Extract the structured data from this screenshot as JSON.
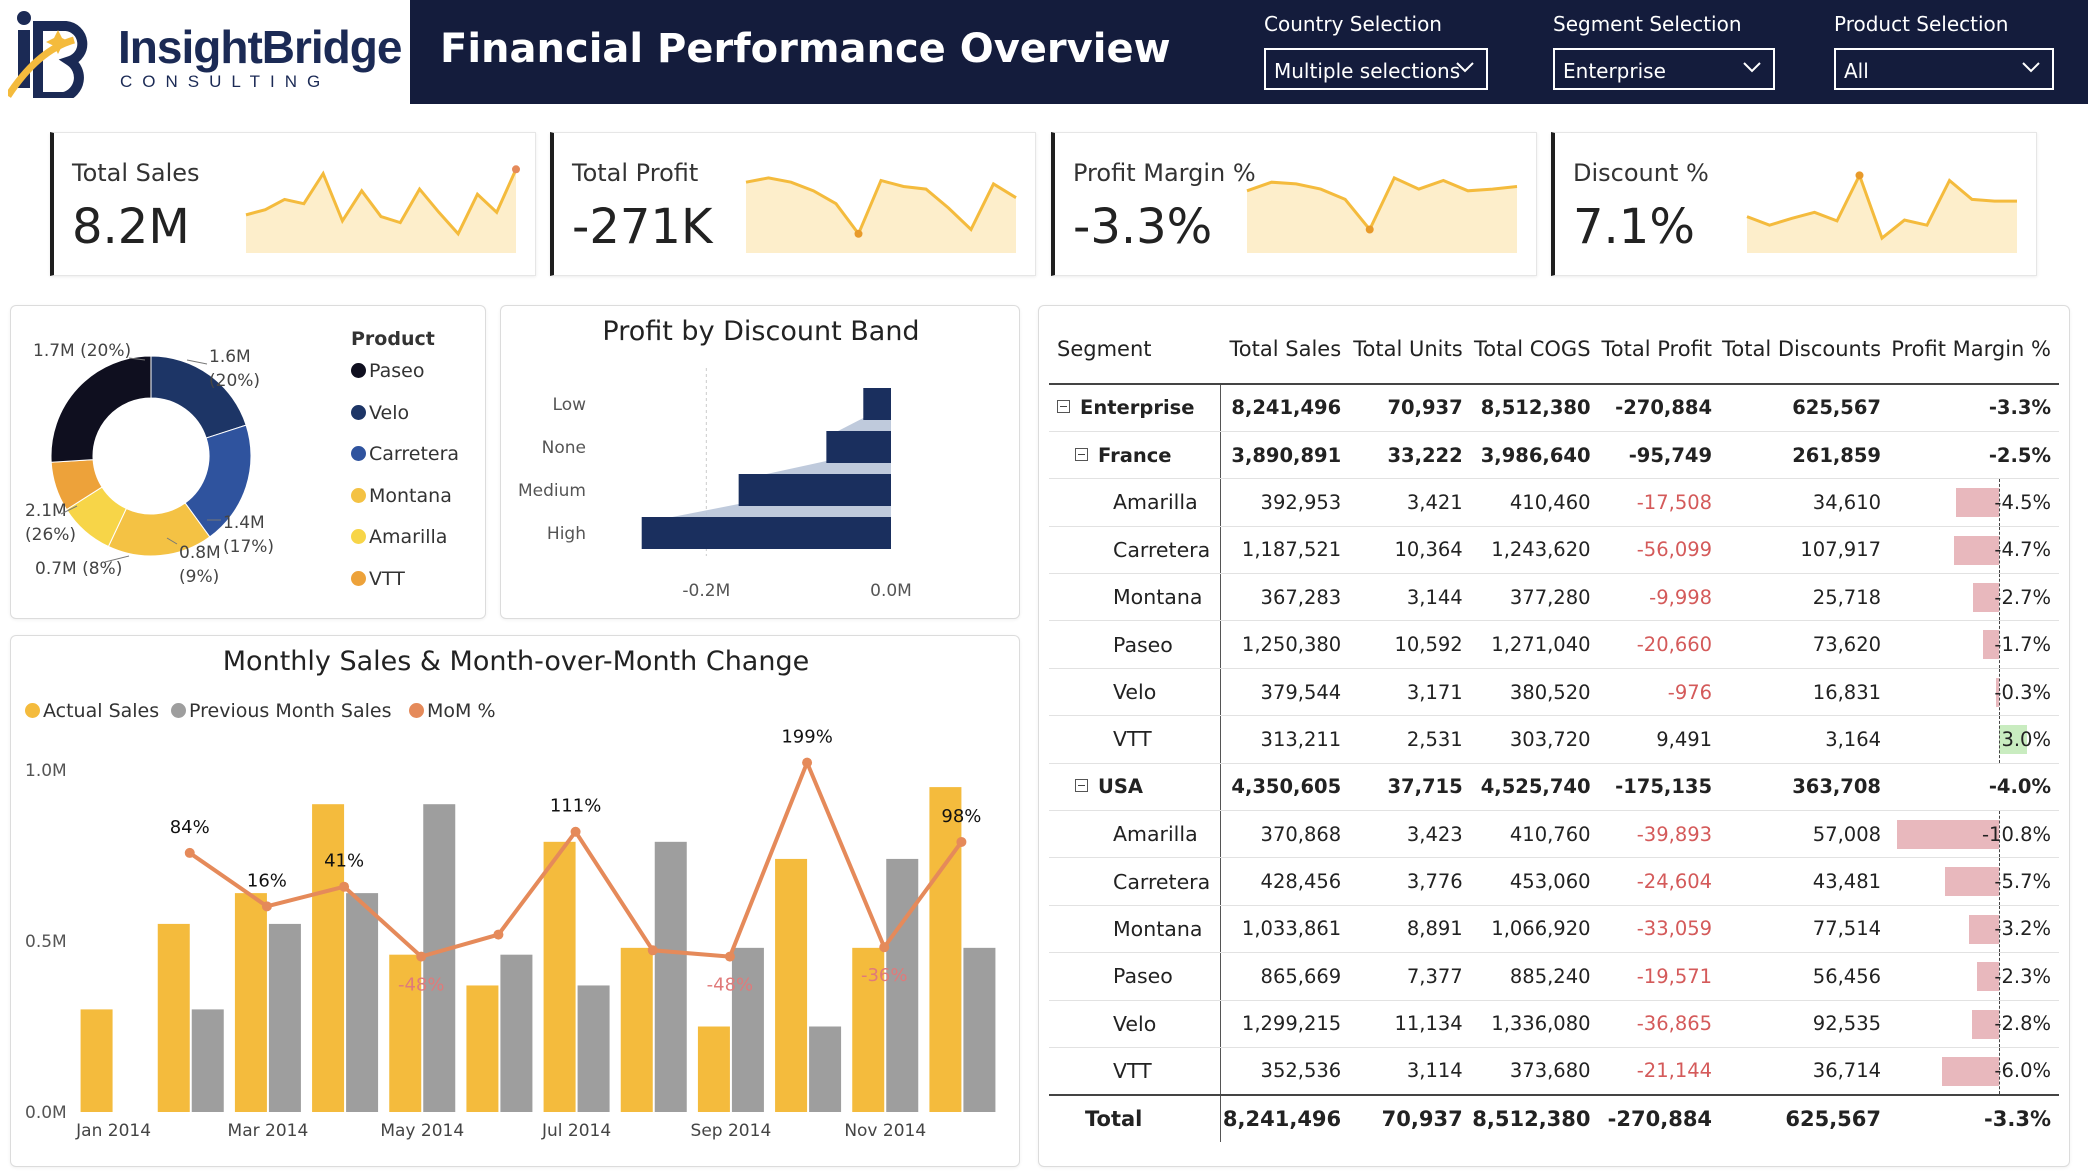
{
  "brand": {
    "name": "InsightBridge",
    "tagline": "CONSULTING"
  },
  "title": "Financial Performance Overview",
  "slicers": [
    {
      "label": "Country Selection",
      "value": "Multiple selections"
    },
    {
      "label": "Segment Selection",
      "value": "Enterprise"
    },
    {
      "label": "Product Selection",
      "value": "All"
    }
  ],
  "kpis": [
    {
      "label": "Total Sales",
      "value": "8.2M",
      "spark": [
        0.42,
        0.48,
        0.6,
        0.55,
        0.9,
        0.35,
        0.7,
        0.4,
        0.33,
        0.72,
        0.45,
        0.2,
        0.66,
        0.45,
        0.95
      ],
      "accent": "end"
    },
    {
      "label": "Total Profit",
      "value": "-271K",
      "spark": [
        0.8,
        0.85,
        0.8,
        0.7,
        0.55,
        0.2,
        0.82,
        0.75,
        0.72,
        0.5,
        0.25,
        0.78,
        0.62
      ],
      "accent": "min"
    },
    {
      "label": "Profit Margin %",
      "value": "-3.3%",
      "spark": [
        0.7,
        0.8,
        0.78,
        0.72,
        0.6,
        0.25,
        0.85,
        0.72,
        0.82,
        0.7,
        0.72,
        0.75
      ],
      "accent": "min"
    },
    {
      "label": "Discount %",
      "value": "7.1%",
      "spark": [
        0.4,
        0.3,
        0.38,
        0.45,
        0.35,
        0.88,
        0.15,
        0.36,
        0.3,
        0.82,
        0.6,
        0.58,
        0.58
      ],
      "accent": "max"
    }
  ],
  "donut": {
    "legend_title": "Product",
    "slices": [
      {
        "name": "Paseo",
        "value": 2.1,
        "share": 26,
        "label": "2.1M (26%)",
        "color": "#0f0f1f"
      },
      {
        "name": "Velo",
        "value": 1.7,
        "share": 20,
        "label": "1.7M (20%)",
        "color": "#1d3566"
      },
      {
        "name": "Carretera",
        "value": 1.6,
        "share": 20,
        "label": "1.6M (20%)",
        "color": "#2f539e"
      },
      {
        "name": "Montana",
        "value": 1.4,
        "share": 17,
        "label": "1.4M (17%)",
        "color": "#f4c244"
      },
      {
        "name": "Amarilla",
        "value": 0.8,
        "share": 9,
        "label": "0.8M (9%)",
        "color": "#f7d548"
      },
      {
        "name": "VTT",
        "value": 0.7,
        "share": 8,
        "label": "0.7M (8%)",
        "color": "#eda23a"
      }
    ]
  },
  "chart_data": [
    {
      "type": "bar",
      "title": "Profit by Discount Band",
      "orientation": "horizontal",
      "categories": [
        "Low",
        "None",
        "Medium",
        "High"
      ],
      "values": [
        -0.03,
        -0.07,
        -0.165,
        -0.27
      ],
      "xticks": [
        "-0.2M",
        "0.0M"
      ],
      "xlim": [
        -0.3,
        0.0
      ],
      "color": "#1a2f5e"
    },
    {
      "type": "bar",
      "title": "Monthly Sales & Month-over-Month Change",
      "legend": [
        "Actual Sales",
        "Previous Month Sales",
        "MoM %"
      ],
      "legend_position": "top-left",
      "x": [
        "Jan 2014",
        "Feb 2014",
        "Mar 2014",
        "Apr 2014",
        "May 2014",
        "Jun 2014",
        "Jul 2014",
        "Aug 2014",
        "Sep 2014",
        "Oct 2014",
        "Nov 2014",
        "Dec 2014"
      ],
      "xticks": [
        "Jan 2014",
        "Mar 2014",
        "May 2014",
        "Jul 2014",
        "Sep 2014",
        "Nov 2014"
      ],
      "yticks": [
        "0.0M",
        "0.5M",
        "1.0M"
      ],
      "ylim": [
        0,
        1.0
      ],
      "series": [
        {
          "name": "Actual Sales",
          "color": "#f4bb3d",
          "values": [
            0.3,
            0.55,
            0.64,
            0.9,
            0.46,
            0.37,
            0.79,
            0.48,
            0.25,
            0.74,
            0.48,
            0.95
          ]
        },
        {
          "name": "Previous Month Sales",
          "color": "#9e9e9e",
          "values": [
            null,
            0.3,
            0.55,
            0.64,
            0.9,
            0.46,
            0.37,
            0.79,
            0.48,
            0.25,
            0.74,
            0.48
          ]
        },
        {
          "name": "MoM %",
          "color": "#e58a5a",
          "values": [
            null,
            84,
            16,
            41,
            -48,
            -20,
            111,
            -40,
            -48,
            199,
            -36,
            98
          ],
          "labels": [
            "",
            "84%",
            "16%",
            "41%",
            "-48%",
            "",
            "111%",
            "",
            "-48%",
            "199%",
            "-36%",
            "98%"
          ]
        }
      ]
    }
  ],
  "matrix": {
    "columns": [
      "Segment",
      "Total Sales",
      "Total Units",
      "Total COGS",
      "Total Profit",
      "Total Discounts",
      "Profit Margin %"
    ],
    "pm_range": [
      -10.8,
      3.0
    ],
    "rows": [
      {
        "level": 0,
        "name": "Enterprise",
        "cells": [
          "8,241,496",
          "70,937",
          "8,512,380",
          "-270,884",
          "625,567",
          "-3.3%"
        ],
        "pm": -3.3
      },
      {
        "level": 1,
        "name": "France",
        "cells": [
          "3,890,891",
          "33,222",
          "3,986,640",
          "-95,749",
          "261,859",
          "-2.5%"
        ],
        "pm": -2.5
      },
      {
        "level": 2,
        "name": "Amarilla",
        "cells": [
          "392,953",
          "3,421",
          "410,460",
          "-17,508",
          "34,610",
          "-4.5%"
        ],
        "pm": -4.5
      },
      {
        "level": 2,
        "name": "Carretera",
        "cells": [
          "1,187,521",
          "10,364",
          "1,243,620",
          "-56,099",
          "107,917",
          "-4.7%"
        ],
        "pm": -4.7
      },
      {
        "level": 2,
        "name": "Montana",
        "cells": [
          "367,283",
          "3,144",
          "377,280",
          "-9,998",
          "25,718",
          "-2.7%"
        ],
        "pm": -2.7
      },
      {
        "level": 2,
        "name": "Paseo",
        "cells": [
          "1,250,380",
          "10,592",
          "1,271,040",
          "-20,660",
          "73,620",
          "-1.7%"
        ],
        "pm": -1.7
      },
      {
        "level": 2,
        "name": "Velo",
        "cells": [
          "379,544",
          "3,171",
          "380,520",
          "-976",
          "16,831",
          "-0.3%"
        ],
        "pm": -0.3
      },
      {
        "level": 2,
        "name": "VTT",
        "cells": [
          "313,211",
          "2,531",
          "303,720",
          "9,491",
          "3,164",
          "3.0%"
        ],
        "pm": 3.0
      },
      {
        "level": 1,
        "name": "USA",
        "cells": [
          "4,350,605",
          "37,715",
          "4,525,740",
          "-175,135",
          "363,708",
          "-4.0%"
        ],
        "pm": -4.0
      },
      {
        "level": 2,
        "name": "Amarilla",
        "cells": [
          "370,868",
          "3,423",
          "410,760",
          "-39,893",
          "57,008",
          "-10.8%"
        ],
        "pm": -10.8
      },
      {
        "level": 2,
        "name": "Carretera",
        "cells": [
          "428,456",
          "3,776",
          "453,060",
          "-24,604",
          "43,481",
          "-5.7%"
        ],
        "pm": -5.7
      },
      {
        "level": 2,
        "name": "Montana",
        "cells": [
          "1,033,861",
          "8,891",
          "1,066,920",
          "-33,059",
          "77,514",
          "-3.2%"
        ],
        "pm": -3.2
      },
      {
        "level": 2,
        "name": "Paseo",
        "cells": [
          "865,669",
          "7,377",
          "885,240",
          "-19,571",
          "56,456",
          "-2.3%"
        ],
        "pm": -2.3
      },
      {
        "level": 2,
        "name": "Velo",
        "cells": [
          "1,299,215",
          "11,134",
          "1,336,080",
          "-36,865",
          "92,535",
          "-2.8%"
        ],
        "pm": -2.8
      },
      {
        "level": 2,
        "name": "VTT",
        "cells": [
          "352,536",
          "3,114",
          "373,680",
          "-21,144",
          "36,714",
          "-6.0%"
        ],
        "pm": -6.0
      }
    ],
    "total": {
      "name": "Total",
      "cells": [
        "8,241,496",
        "70,937",
        "8,512,380",
        "-270,884",
        "625,567",
        "-3.3%"
      ]
    }
  },
  "colors": {
    "navy": "#141c3c",
    "gold": "#f4bb3d",
    "grey": "#9e9e9e",
    "orange": "#e58a5a",
    "neg_bar": "#e8b8bd",
    "pos_bar": "#c9ecc0",
    "neg_text": "#d45a5a"
  }
}
